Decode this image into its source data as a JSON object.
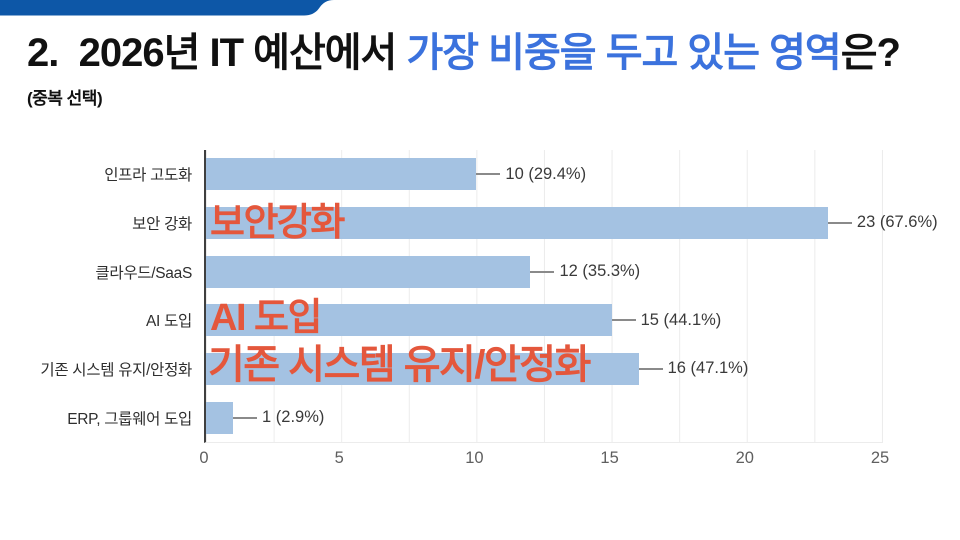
{
  "slide": {
    "title_prefix": "2.  2026년 IT 예산에서 ",
    "title_highlight": "가장 비중을 두고 있는 영역",
    "title_suffix": "은?",
    "subtitle": "(중복 선택)"
  },
  "colors": {
    "banner_blue": "#0d57a7",
    "title_highlight_blue": "#3b72dd",
    "bar_blue": "#a4c2e2",
    "annotation_orange": "#e4573c"
  },
  "chart_data": {
    "type": "bar",
    "orientation": "horizontal",
    "categories": [
      "인프라 고도화",
      "보안 강화",
      "클라우드/SaaS",
      "AI 도입",
      "기존 시스템 유지/안정화",
      "ERP, 그룹웨어 도입"
    ],
    "values": [
      10,
      23,
      12,
      15,
      16,
      1
    ],
    "percentages": [
      29.4,
      67.6,
      35.3,
      44.1,
      47.1,
      2.9
    ],
    "value_labels": [
      "10 (29.4%)",
      "23 (67.6%)",
      "12 (35.3%)",
      "15 (44.1%)",
      "16 (47.1%)",
      "1 (2.9%)"
    ],
    "x_ticks": [
      "0",
      "5",
      "10",
      "15",
      "20",
      "25"
    ],
    "xlim": [
      0,
      25
    ],
    "grid": "vertical gridlines every 2.5 units",
    "legend": "none",
    "title": "",
    "xlabel": "",
    "ylabel": ""
  },
  "annotations": [
    "보안강화",
    "AI 도입",
    "기존 시스템 유지/안정화"
  ]
}
